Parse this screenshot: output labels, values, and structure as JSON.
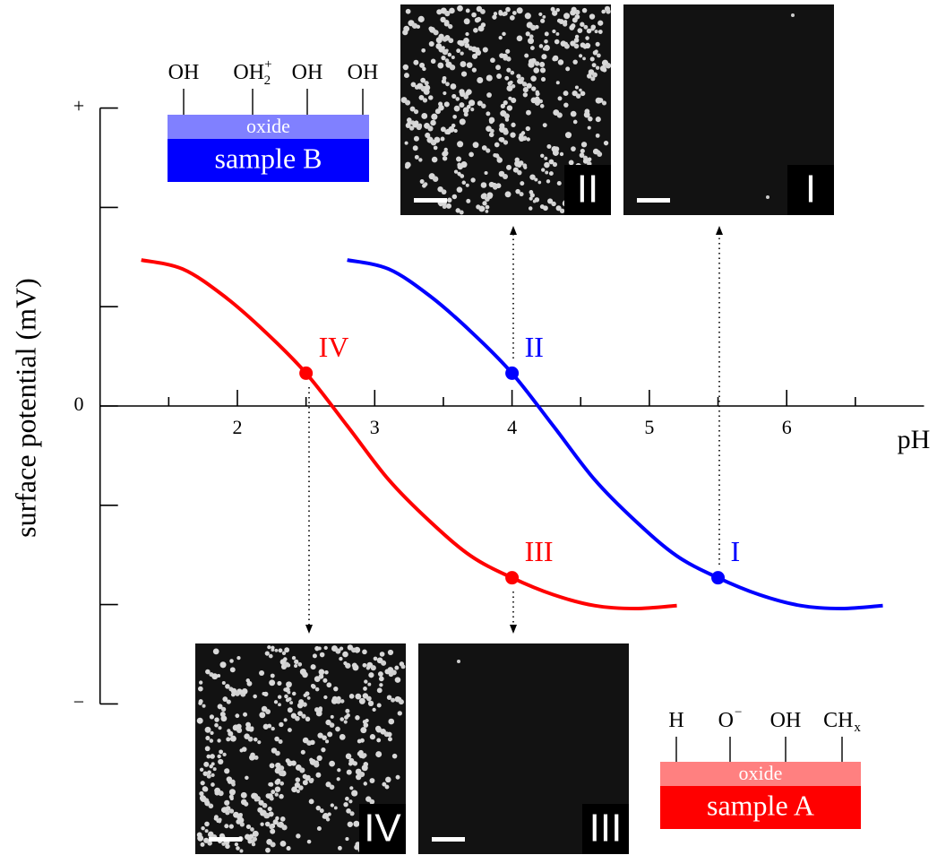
{
  "chart_data": {
    "type": "line",
    "xlabel": "pH",
    "ylabel": "surface potential (mV)",
    "xlim": [
      1,
      7
    ],
    "ylim": [
      -3,
      3
    ],
    "xticks": [
      2,
      3,
      4,
      5,
      6
    ],
    "xminor": [
      1.5,
      2.5,
      3.5,
      4.5,
      5.5,
      6.5
    ],
    "yticks": [
      {
        "value": 3,
        "label": "+"
      },
      0,
      {
        "value": -3,
        "label": "−"
      }
    ],
    "yminor": [
      -2,
      -1,
      1,
      2
    ],
    "series": [
      {
        "color": "#ff0000",
        "x": [
          1.3,
          1.6,
          1.9,
          2.2,
          2.5,
          2.8,
          3.1,
          3.4,
          3.7,
          4.0,
          4.3,
          4.6,
          4.9,
          5.2
        ],
        "values": [
          1.47,
          1.38,
          1.11,
          0.75,
          0.33,
          -0.2,
          -0.74,
          -1.16,
          -1.51,
          -1.73,
          -1.9,
          -2.01,
          -2.04,
          -2.01
        ]
      },
      {
        "color": "#0000ff",
        "x": [
          2.8,
          3.1,
          3.4,
          3.7,
          4.0,
          4.3,
          4.6,
          4.9,
          5.2,
          5.5,
          5.8,
          6.1,
          6.4,
          6.7
        ],
        "values": [
          1.47,
          1.38,
          1.11,
          0.75,
          0.33,
          -0.2,
          -0.74,
          -1.16,
          -1.51,
          -1.73,
          -1.9,
          -2.01,
          -2.04,
          -2.01
        ]
      }
    ],
    "points": [
      {
        "label": "IV",
        "x": 2.5,
        "y": 0.33,
        "color": "#ff0000"
      },
      {
        "label": "III",
        "x": 4.0,
        "y": -1.73,
        "color": "#ff0000"
      },
      {
        "label": "II",
        "x": 4.0,
        "y": 0.33,
        "color": "#0000ff"
      },
      {
        "label": "I",
        "x": 5.5,
        "y": -1.73,
        "color": "#0000ff"
      }
    ]
  },
  "insets": [
    {
      "label": "II"
    },
    {
      "label": "I"
    },
    {
      "label": "IV"
    },
    {
      "label": "III"
    }
  ],
  "samples": [
    {
      "name": "sample B",
      "layer": "oxide",
      "sites": [
        {
          "text": "OH"
        },
        {
          "text": "OH",
          "sub": "2",
          "sup": "+"
        },
        {
          "text": "OH"
        },
        {
          "text": "OH"
        }
      ]
    },
    {
      "name": "sample A",
      "layer": "oxide",
      "sites": [
        {
          "text": "H"
        },
        {
          "text": "O",
          "sup": "−"
        },
        {
          "text": "OH"
        },
        {
          "text": "CH",
          "sub": "x"
        }
      ]
    }
  ]
}
